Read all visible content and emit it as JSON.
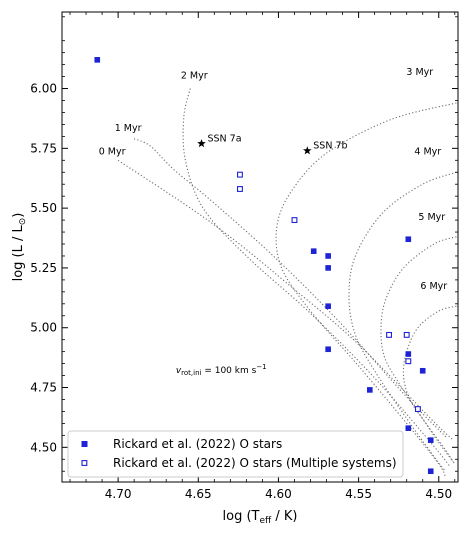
{
  "chart_data": {
    "type": "scatter",
    "xlabel_main": "log (T",
    "xlabel_sub": "eff",
    "xlabel_tail": " / K)",
    "ylabel_main": "log (L / L",
    "ylabel_sym": "⊙",
    "ylabel_tail": ")",
    "xlim": [
      4.735,
      4.488
    ],
    "ylim": [
      4.355,
      6.32
    ],
    "xticks": [
      4.7,
      4.65,
      4.6,
      4.55,
      4.5
    ],
    "xtick_labels": [
      "4.70",
      "4.65",
      "4.60",
      "4.55",
      "4.50"
    ],
    "yticks": [
      4.5,
      4.75,
      5.0,
      5.25,
      5.5,
      5.75,
      6.0
    ],
    "ytick_labels": [
      "4.50",
      "4.75",
      "5.00",
      "5.25",
      "5.50",
      "5.75",
      "6.00"
    ],
    "grid": false,
    "legend_position": "lower-left",
    "marker_color": "#1f23d6",
    "series": [
      {
        "name": "Rickard et al. (2022) O stars",
        "marker": "filled-square",
        "points": [
          [
            4.713,
            6.12
          ],
          [
            4.578,
            5.32
          ],
          [
            4.569,
            5.3
          ],
          [
            4.569,
            5.25
          ],
          [
            4.569,
            5.09
          ],
          [
            4.569,
            4.91
          ],
          [
            4.543,
            4.74
          ],
          [
            4.519,
            5.37
          ],
          [
            4.519,
            4.89
          ],
          [
            4.519,
            4.58
          ],
          [
            4.51,
            4.82
          ],
          [
            4.505,
            4.53
          ],
          [
            4.505,
            4.4
          ]
        ]
      },
      {
        "name": "Rickard et al. (2022) O stars (Multiple systems)",
        "marker": "open-square",
        "points": [
          [
            4.624,
            5.64
          ],
          [
            4.624,
            5.58
          ],
          [
            4.59,
            5.45
          ],
          [
            4.531,
            4.97
          ],
          [
            4.52,
            4.97
          ],
          [
            4.519,
            4.86
          ],
          [
            4.513,
            4.66
          ]
        ]
      }
    ],
    "special_stars": [
      {
        "label": "SSN 7a",
        "x": 4.648,
        "y": 5.77
      },
      {
        "label": "SSN 7b",
        "x": 4.582,
        "y": 5.74
      }
    ],
    "isochrones": [
      {
        "label": "0 Myr",
        "points": [
          [
            4.7,
            5.7
          ],
          [
            4.64,
            5.43
          ],
          [
            4.59,
            5.16
          ],
          [
            4.55,
            4.93
          ],
          [
            4.505,
            4.62
          ],
          [
            4.491,
            4.53
          ]
        ]
      },
      {
        "label": "1 Myr",
        "points": [
          [
            4.69,
            5.79
          ],
          [
            4.68,
            5.76
          ],
          [
            4.665,
            5.66
          ],
          [
            4.64,
            5.52
          ],
          [
            4.6,
            5.28
          ],
          [
            4.56,
            5.01
          ],
          [
            4.52,
            4.71
          ],
          [
            4.495,
            4.54
          ]
        ]
      },
      {
        "label": "2 Myr",
        "points": [
          [
            4.655,
            6.0
          ],
          [
            4.659,
            5.88
          ],
          [
            4.658,
            5.7
          ],
          [
            4.647,
            5.5
          ],
          [
            4.62,
            5.3
          ],
          [
            4.58,
            5.06
          ],
          [
            4.54,
            4.79
          ],
          [
            4.505,
            4.52
          ],
          [
            4.493,
            4.42
          ]
        ]
      },
      {
        "label": "3 Myr",
        "points": [
          [
            4.489,
            5.94
          ],
          [
            4.53,
            5.87
          ],
          [
            4.57,
            5.73
          ],
          [
            4.592,
            5.57
          ],
          [
            4.601,
            5.42
          ],
          [
            4.598,
            5.25
          ],
          [
            4.58,
            5.07
          ],
          [
            4.55,
            4.84
          ],
          [
            4.52,
            4.6
          ],
          [
            4.5,
            4.43
          ],
          [
            4.496,
            4.38
          ]
        ]
      },
      {
        "label": "4 Myr",
        "points": [
          [
            4.489,
            5.65
          ],
          [
            4.51,
            5.6
          ],
          [
            4.535,
            5.48
          ],
          [
            4.552,
            5.3
          ],
          [
            4.556,
            5.13
          ],
          [
            4.552,
            4.97
          ],
          [
            4.54,
            4.82
          ],
          [
            4.52,
            4.62
          ],
          [
            4.505,
            4.48
          ],
          [
            4.496,
            4.4
          ]
        ]
      },
      {
        "label": "5 Myr",
        "points": [
          [
            4.489,
            5.38
          ],
          [
            4.503,
            5.35
          ],
          [
            4.522,
            5.25
          ],
          [
            4.533,
            5.12
          ],
          [
            4.536,
            5.0
          ],
          [
            4.534,
            4.88
          ],
          [
            4.525,
            4.77
          ],
          [
            4.512,
            4.64
          ],
          [
            4.5,
            4.52
          ],
          [
            4.491,
            4.44
          ]
        ]
      },
      {
        "label": "6 Myr",
        "points": [
          [
            4.489,
            5.09
          ],
          [
            4.5,
            5.07
          ],
          [
            4.513,
            5.0
          ],
          [
            4.52,
            4.9
          ],
          [
            4.522,
            4.8
          ],
          [
            4.518,
            4.7
          ],
          [
            4.508,
            4.6
          ],
          [
            4.497,
            4.5
          ],
          [
            4.49,
            4.43
          ]
        ]
      }
    ],
    "annotation": {
      "prefix": "v",
      "sub": "rot,ini",
      "text": " = 100 km s",
      "sup": "−1"
    }
  }
}
